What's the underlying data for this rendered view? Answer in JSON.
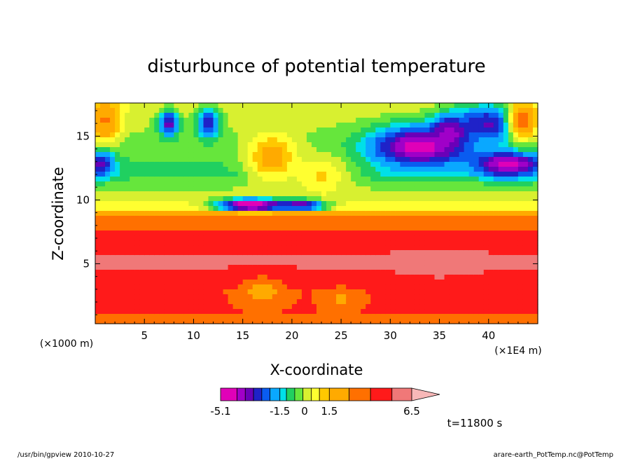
{
  "chart_data": {
    "type": "heatmap",
    "title": "disturbunce of potential temperature",
    "xlabel": "X-coordinate",
    "ylabel": "Z-coordinate",
    "x_unit_left": "(×1000 m)",
    "x_unit_right": "(×1E4 m)",
    "xlim": [
      0,
      45
    ],
    "ylim": [
      0.3,
      17.6
    ],
    "x_ticks": [
      "5",
      "10",
      "15",
      "20",
      "25",
      "30",
      "35",
      "40"
    ],
    "x_tick_values": [
      5,
      10,
      15,
      20,
      25,
      30,
      35,
      40
    ],
    "y_ticks": [
      "5",
      "10",
      "15"
    ],
    "y_tick_values": [
      5,
      10,
      15
    ],
    "colorbar": {
      "levels": [
        -5.1,
        -4.1,
        -3.6,
        -3.1,
        -2.6,
        -2.1,
        -1.5,
        -1.1,
        -0.6,
        -0.1,
        0.4,
        0.9,
        1.5,
        2.7,
        4.0,
        5.3,
        6.5
      ],
      "labels": [
        "-5.1",
        "-1.5",
        "0",
        "1.5",
        "6.5"
      ],
      "label_values": [
        -5.1,
        -1.5,
        0,
        1.5,
        6.5
      ],
      "colors": [
        "#e000b8",
        "#a000c8",
        "#6a00b8",
        "#1f22c8",
        "#0a5cf0",
        "#0aa8ff",
        "#00e0e8",
        "#20d060",
        "#66e63c",
        "#d8f030",
        "#ffff30",
        "#ffc800",
        "#ffaa00",
        "#ff7000",
        "#ff1a1a",
        "#f07878"
      ]
    },
    "features": [
      {
        "x": 33,
        "z": 14.2,
        "value": -4.5,
        "sx": 5.0,
        "sz": 1.6
      },
      {
        "x": 42,
        "z": 12.8,
        "value": -4.5,
        "sx": 3.5,
        "sz": 1.0
      },
      {
        "x": 40,
        "z": 16.0,
        "value": -3.2,
        "sx": 4.0,
        "sz": 1.5
      },
      {
        "x": 36,
        "z": 15.3,
        "value": -4.0,
        "sx": 1.5,
        "sz": 1.2
      },
      {
        "x": 0.5,
        "z": 12.8,
        "value": -3.5,
        "sx": 1.4,
        "sz": 1.0
      },
      {
        "x": 16,
        "z": 9.6,
        "value": -5.2,
        "sx": 3.5,
        "sz": 0.5
      },
      {
        "x": 21,
        "z": 9.6,
        "value": -3.8,
        "sx": 2.5,
        "sz": 0.45
      },
      {
        "x": 7.5,
        "z": 16.0,
        "value": -3.5,
        "sx": 1.0,
        "sz": 1.0
      },
      {
        "x": 11.5,
        "z": 16.0,
        "value": -3.0,
        "sx": 1.2,
        "sz": 1.2
      },
      {
        "x": 18,
        "z": 13.3,
        "value": 2.0,
        "sx": 2.5,
        "sz": 1.8
      },
      {
        "x": 23,
        "z": 12.0,
        "value": 1.0,
        "sx": 3.0,
        "sz": 1.5
      },
      {
        "x": 1,
        "z": 16.2,
        "value": 2.8,
        "sx": 1.5,
        "sz": 1.5
      },
      {
        "x": 43.5,
        "z": 16.2,
        "value": 3.2,
        "sx": 1.5,
        "sz": 1.5
      },
      {
        "x": 35,
        "z": 5.0,
        "value": 6.0,
        "sx": 3.5,
        "sz": 0.9
      },
      {
        "x": 25,
        "z": 2.2,
        "value": 2.5,
        "sx": 2.0,
        "sz": 1.0
      },
      {
        "x": 17,
        "z": 2.8,
        "value": 2.2,
        "sx": 2.5,
        "sz": 1.2
      }
    ]
  },
  "footer": {
    "time_label": "t=11800 s",
    "program": "/usr/bin/gpview   2010-10-27",
    "source": "arare-earth_PotTemp.nc@PotTemp"
  }
}
